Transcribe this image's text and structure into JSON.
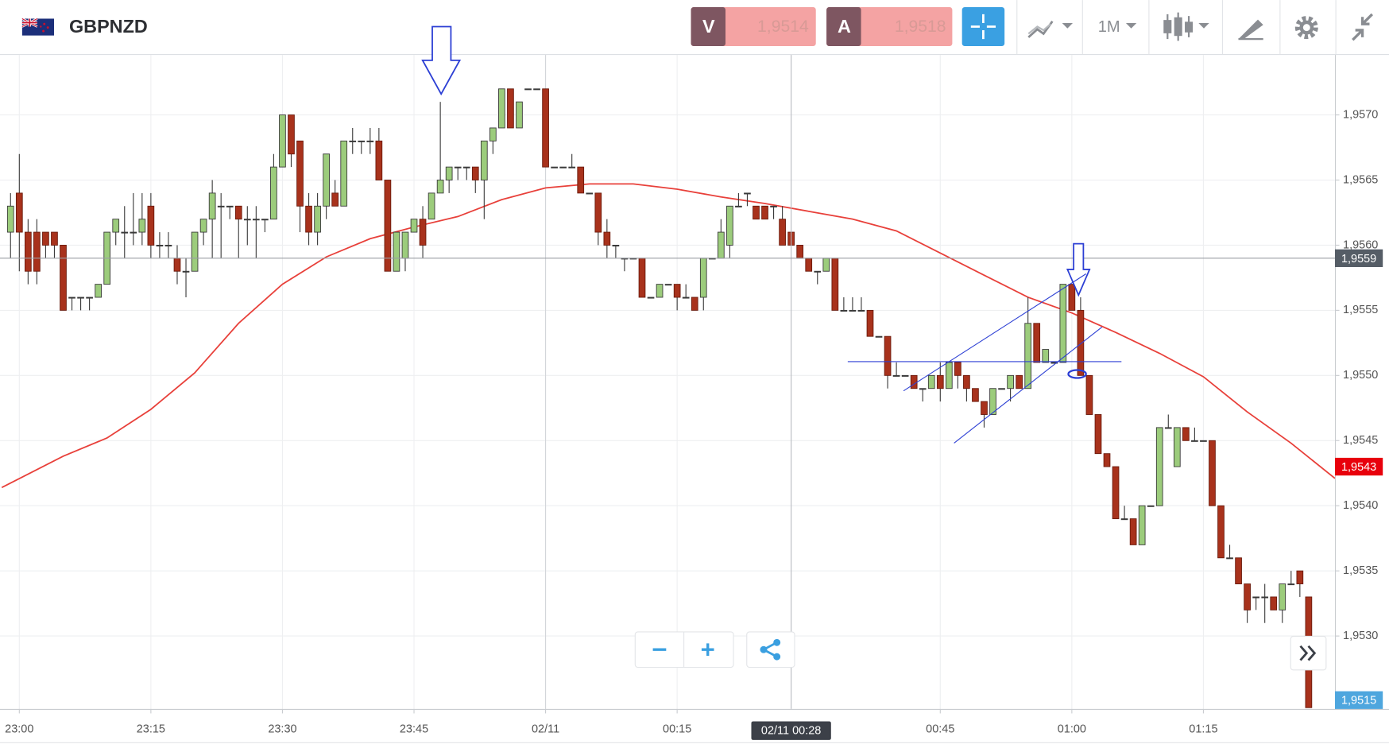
{
  "toolbar": {
    "symbol": "GBPNZD",
    "sell": {
      "label": "V",
      "price": "1,9514"
    },
    "buy": {
      "label": "A",
      "price": "1,9518"
    },
    "timeframe": "1M"
  },
  "chart_data": {
    "type": "candlestick",
    "x": [
      "22:59",
      "23:00",
      "23:01",
      "23:02",
      "23:03",
      "23:04",
      "23:05",
      "23:06",
      "23:07",
      "23:08",
      "23:09",
      "23:10",
      "23:11",
      "23:12",
      "23:13",
      "23:14",
      "23:15",
      "23:16",
      "23:17",
      "23:18",
      "23:19",
      "23:20",
      "23:21",
      "23:22",
      "23:23",
      "23:24",
      "23:25",
      "23:26",
      "23:27",
      "23:28",
      "23:29",
      "23:30",
      "23:31",
      "23:32",
      "23:33",
      "23:34",
      "23:35",
      "23:36",
      "23:37",
      "23:38",
      "23:39",
      "23:40",
      "23:41",
      "23:42",
      "23:43",
      "23:44",
      "23:45",
      "23:46",
      "23:47",
      "23:48",
      "23:49",
      "23:50",
      "23:51",
      "23:52",
      "23:53",
      "23:54",
      "23:55",
      "23:56",
      "23:57",
      "23:58",
      "23:59",
      "00:00",
      "00:01",
      "00:02",
      "00:03",
      "00:04",
      "00:05",
      "00:06",
      "00:07",
      "00:08",
      "00:09",
      "00:10",
      "00:11",
      "00:12",
      "00:13",
      "00:14",
      "00:15",
      "00:16",
      "00:17",
      "00:18",
      "00:19",
      "00:20",
      "00:21",
      "00:22",
      "00:23",
      "00:24",
      "00:25",
      "00:26",
      "00:27",
      "00:28",
      "00:29",
      "00:30",
      "00:31",
      "00:32",
      "00:33",
      "00:34",
      "00:35",
      "00:36",
      "00:37",
      "00:38",
      "00:39",
      "00:40",
      "00:41",
      "00:42",
      "00:43",
      "00:44",
      "00:45",
      "00:46",
      "00:47",
      "00:48",
      "00:49",
      "00:50",
      "00:51",
      "00:52",
      "00:53",
      "00:54",
      "00:55",
      "00:56",
      "00:57",
      "00:58",
      "00:59",
      "01:00",
      "01:01",
      "01:02",
      "01:03",
      "01:04",
      "01:05",
      "01:06",
      "01:07",
      "01:08",
      "01:09",
      "01:10",
      "01:11",
      "01:12",
      "01:13",
      "01:14",
      "01:15",
      "01:16",
      "01:17",
      "01:18",
      "01:19",
      "01:20",
      "01:21",
      "01:22",
      "01:23",
      "01:24",
      "01:25",
      "01:26",
      "01:27"
    ],
    "open": [
      1.9561,
      1.9564,
      1.9561,
      1.9561,
      1.9561,
      1.9561,
      1.956,
      1.9556,
      1.9556,
      1.9556,
      1.9556,
      1.9557,
      1.9561,
      1.9561,
      1.9561,
      1.9561,
      1.9563,
      1.956,
      1.956,
      1.9559,
      1.9558,
      1.9558,
      1.9561,
      1.9562,
      1.9563,
      1.9563,
      1.9563,
      1.9562,
      1.9562,
      1.9562,
      1.9562,
      1.9566,
      1.957,
      1.9568,
      1.9563,
      1.9561,
      1.9563,
      1.9564,
      1.9563,
      1.9568,
      1.9568,
      1.9568,
      1.9568,
      1.9565,
      1.9558,
      1.9559,
      1.9561,
      1.9562,
      1.9562,
      1.9564,
      1.9565,
      1.9566,
      1.9566,
      1.9566,
      1.9565,
      1.9568,
      1.9569,
      1.9572,
      1.9569,
      1.9572,
      1.9572,
      1.9572,
      1.9566,
      1.9566,
      1.9566,
      1.9566,
      1.9564,
      1.9564,
      1.9561,
      1.956,
      1.9559,
      1.9559,
      1.9559,
      1.9556,
      1.9556,
      1.9557,
      1.9557,
      1.9556,
      1.9556,
      1.9556,
      1.9559,
      1.9559,
      1.956,
      1.9563,
      1.9564,
      1.9563,
      1.9563,
      1.9563,
      1.9562,
      1.9561,
      1.956,
      1.9559,
      1.9558,
      1.9558,
      1.9559,
      1.9555,
      1.9555,
      1.9555,
      1.9555,
      1.9553,
      1.9553,
      1.955,
      1.955,
      1.955,
      1.9549,
      1.9549,
      1.955,
      1.9549,
      1.9551,
      1.955,
      1.9549,
      1.9548,
      1.9547,
      1.9549,
      1.9549,
      1.955,
      1.9549,
      1.9554,
      1.9551,
      1.9551,
      1.9551,
      1.9557,
      1.9555,
      1.955,
      1.9547,
      1.9544,
      1.9543,
      1.9539,
      1.9539,
      1.9537,
      1.954,
      1.954,
      1.9546,
      1.9543,
      1.9546,
      1.9545,
      1.9545,
      1.9545,
      1.954,
      1.9536,
      1.9536,
      1.9534,
      1.9533,
      1.9533,
      1.9533,
      1.9532,
      1.9534,
      1.9535,
      1.9533
    ],
    "high": [
      1.9564,
      1.9567,
      1.9562,
      1.9562,
      1.9561,
      1.9561,
      1.956,
      1.9556,
      1.9556,
      1.9556,
      1.9557,
      1.9561,
      1.9562,
      1.9563,
      1.9564,
      1.9564,
      1.9564,
      1.9561,
      1.9561,
      1.956,
      1.9559,
      1.9561,
      1.9562,
      1.9565,
      1.9564,
      1.9563,
      1.9563,
      1.9563,
      1.9563,
      1.9562,
      1.9567,
      1.957,
      1.957,
      1.9568,
      1.9564,
      1.9564,
      1.9567,
      1.9565,
      1.9568,
      1.9569,
      1.9568,
      1.9569,
      1.9569,
      1.9565,
      1.9561,
      1.9561,
      1.9562,
      1.9563,
      1.9564,
      1.9571,
      1.9566,
      1.9566,
      1.9566,
      1.9566,
      1.9568,
      1.9569,
      1.9572,
      1.9572,
      1.9571,
      1.9572,
      1.9572,
      1.9572,
      1.9566,
      1.9566,
      1.9567,
      1.9566,
      1.9564,
      1.9564,
      1.9562,
      1.956,
      1.9559,
      1.9559,
      1.9559,
      1.9556,
      1.9557,
      1.9557,
      1.9557,
      1.9557,
      1.9556,
      1.9559,
      1.9559,
      1.9562,
      1.9563,
      1.9564,
      1.9564,
      1.9563,
      1.9563,
      1.9563,
      1.9563,
      1.9561,
      1.956,
      1.9559,
      1.9558,
      1.9559,
      1.9559,
      1.9556,
      1.9556,
      1.9556,
      1.9555,
      1.9553,
      1.9553,
      1.9551,
      1.955,
      1.955,
      1.9549,
      1.955,
      1.9551,
      1.9551,
      1.9551,
      1.955,
      1.9549,
      1.9548,
      1.9549,
      1.9549,
      1.955,
      1.955,
      1.9556,
      1.9554,
      1.9552,
      1.9551,
      1.9557,
      1.9557,
      1.9556,
      1.955,
      1.9547,
      1.9544,
      1.9543,
      1.954,
      1.9539,
      1.954,
      1.954,
      1.9546,
      1.9547,
      1.9546,
      1.9546,
      1.9546,
      1.9545,
      1.9545,
      1.954,
      1.9537,
      1.9536,
      1.9534,
      1.9533,
      1.9534,
      1.9533,
      1.9534,
      1.9535,
      1.9535,
      1.9533
    ],
    "low": [
      1.9559,
      1.9558,
      1.9557,
      1.9557,
      1.9559,
      1.9559,
      1.9555,
      1.9555,
      1.9555,
      1.9555,
      1.9556,
      1.9557,
      1.956,
      1.9559,
      1.956,
      1.956,
      1.9559,
      1.9559,
      1.9559,
      1.9557,
      1.9556,
      1.9558,
      1.956,
      1.9559,
      1.9559,
      1.9562,
      1.9559,
      1.956,
      1.9559,
      1.9561,
      1.9562,
      1.9566,
      1.9566,
      1.9561,
      1.956,
      1.956,
      1.9562,
      1.9563,
      1.9563,
      1.9567,
      1.9567,
      1.9567,
      1.9565,
      1.9558,
      1.9558,
      1.9558,
      1.9561,
      1.9559,
      1.9562,
      1.9564,
      1.9564,
      1.9565,
      1.9565,
      1.9564,
      1.9562,
      1.9567,
      1.9569,
      1.9569,
      1.9569,
      1.9572,
      1.9572,
      1.9566,
      1.9566,
      1.9566,
      1.9566,
      1.9564,
      1.9564,
      1.956,
      1.9559,
      1.9559,
      1.9558,
      1.9559,
      1.9556,
      1.9556,
      1.9556,
      1.9557,
      1.9555,
      1.9556,
      1.9555,
      1.9555,
      1.9559,
      1.9559,
      1.9559,
      1.9563,
      1.9563,
      1.9562,
      1.9562,
      1.9562,
      1.956,
      1.956,
      1.9559,
      1.9558,
      1.9557,
      1.9558,
      1.9555,
      1.9555,
      1.9555,
      1.9555,
      1.9553,
      1.9553,
      1.9549,
      1.955,
      1.955,
      1.9549,
      1.9548,
      1.9549,
      1.9548,
      1.9549,
      1.9549,
      1.9548,
      1.9548,
      1.9546,
      1.9547,
      1.9549,
      1.9548,
      1.9549,
      1.9549,
      1.9551,
      1.9551,
      1.9551,
      1.9551,
      1.9555,
      1.955,
      1.9547,
      1.9544,
      1.9543,
      1.9539,
      1.9539,
      1.9537,
      1.9537,
      1.954,
      1.954,
      1.9546,
      1.9543,
      1.9545,
      1.9545,
      1.9545,
      1.954,
      1.9536,
      1.9536,
      1.9534,
      1.9531,
      1.9532,
      1.9531,
      1.9532,
      1.9531,
      1.9534,
      1.9533,
      1.95245
    ],
    "close": [
      1.9563,
      1.9561,
      1.9558,
      1.9558,
      1.956,
      1.956,
      1.9555,
      1.9556,
      1.9556,
      1.9556,
      1.9557,
      1.9561,
      1.9562,
      1.9561,
      1.9561,
      1.9562,
      1.956,
      1.956,
      1.956,
      1.9558,
      1.9558,
      1.9561,
      1.9562,
      1.9564,
      1.9563,
      1.9563,
      1.9562,
      1.9562,
      1.9562,
      1.9562,
      1.9566,
      1.957,
      1.9567,
      1.9563,
      1.9561,
      1.9563,
      1.9567,
      1.9563,
      1.9568,
      1.9568,
      1.9568,
      1.9568,
      1.9565,
      1.9558,
      1.9561,
      1.9561,
      1.9562,
      1.956,
      1.9564,
      1.9565,
      1.9566,
      1.9566,
      1.9566,
      1.9565,
      1.9568,
      1.9569,
      1.9572,
      1.9569,
      1.9571,
      1.9572,
      1.9572,
      1.9566,
      1.9566,
      1.9566,
      1.9566,
      1.9564,
      1.9564,
      1.9561,
      1.956,
      1.956,
      1.9559,
      1.9559,
      1.9556,
      1.9556,
      1.9557,
      1.9557,
      1.9556,
      1.9556,
      1.9555,
      1.9559,
      1.9559,
      1.9561,
      1.9563,
      1.9563,
      1.9564,
      1.9562,
      1.9562,
      1.9563,
      1.956,
      1.956,
      1.9559,
      1.9558,
      1.9558,
      1.9559,
      1.9555,
      1.9555,
      1.9555,
      1.9555,
      1.9553,
      1.9553,
      1.955,
      1.955,
      1.955,
      1.9549,
      1.9549,
      1.955,
      1.9549,
      1.9551,
      1.955,
      1.9549,
      1.9548,
      1.9547,
      1.9549,
      1.9549,
      1.955,
      1.9549,
      1.9554,
      1.9551,
      1.9552,
      1.9551,
      1.9557,
      1.9555,
      1.955,
      1.9547,
      1.9544,
      1.9543,
      1.9539,
      1.9539,
      1.9537,
      1.954,
      1.954,
      1.9546,
      1.9546,
      1.9546,
      1.9545,
      1.9545,
      1.9545,
      1.954,
      1.9536,
      1.9536,
      1.9534,
      1.9532,
      1.9533,
      1.9533,
      1.9532,
      1.9534,
      1.9534,
      1.9534,
      1.95245
    ],
    "up_color": "#9ccc7c",
    "down_color": "#a8321c",
    "ma": {
      "color": "#e8403a",
      "x": [
        "22:58",
        "23:05",
        "23:10",
        "23:15",
        "23:20",
        "23:25",
        "23:30",
        "23:35",
        "23:40",
        "23:45",
        "23:50",
        "23:55",
        "00:00",
        "00:05",
        "00:10",
        "00:15",
        "00:20",
        "00:25",
        "00:30",
        "00:35",
        "00:40",
        "00:45",
        "00:50",
        "00:55",
        "01:00",
        "01:05",
        "01:10",
        "01:15",
        "01:20",
        "01:25",
        "01:30"
      ],
      "values": [
        1.95414,
        1.95438,
        1.95452,
        1.95474,
        1.95502,
        1.9554,
        1.9557,
        1.95591,
        1.95605,
        1.95614,
        1.95622,
        1.95635,
        1.95644,
        1.95647,
        1.95647,
        1.95643,
        1.95637,
        1.95632,
        1.95626,
        1.9562,
        1.95611,
        1.95594,
        1.95577,
        1.9556,
        1.95548,
        1.95533,
        1.95517,
        1.95499,
        1.95472,
        1.95448,
        1.95421
      ]
    },
    "xlim": [
      "22:58",
      "01:30"
    ],
    "xticks": [
      "23:00",
      "23:15",
      "23:30",
      "23:45",
      {
        "value": "00:00",
        "label": "02/11"
      },
      "00:15",
      "00:45",
      "01:00",
      "01:15"
    ],
    "ylim": [
      1.95244,
      1.95746
    ],
    "yticks": [
      {
        "value": 1.957,
        "label": "1,9570"
      },
      {
        "value": 1.9565,
        "label": "1,9565"
      },
      {
        "value": 1.956,
        "label": "1,9560"
      },
      {
        "value": 1.9555,
        "label": "1,9555"
      },
      {
        "value": 1.955,
        "label": "1,9550"
      },
      {
        "value": 1.9545,
        "label": "1,9545"
      },
      {
        "value": 1.954,
        "label": "1,9540"
      },
      {
        "value": 1.9535,
        "label": "1,9535"
      },
      {
        "value": 1.953,
        "label": "1,9530"
      }
    ],
    "grid": true,
    "price_markers": [
      {
        "value": 1.9559,
        "label": "1,9559",
        "color": "#555d66"
      },
      {
        "value": 1.9543,
        "label": "1,9543",
        "color": "#e8000c"
      }
    ],
    "last_price": {
      "label": "1,9515",
      "color": "#4ea6de"
    },
    "crosshair": {
      "x": "00:28",
      "label": "02/11 00:28"
    }
  }
}
